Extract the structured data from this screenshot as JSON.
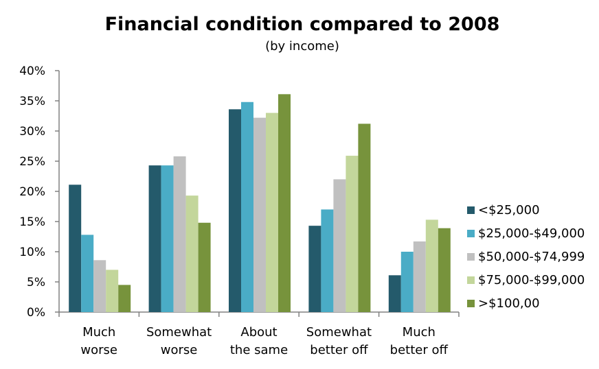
{
  "chart_data": {
    "type": "bar",
    "title": "Financial condition compared to 2008",
    "subtitle": "(by income)",
    "xlabel": "",
    "ylabel": "",
    "ylim": [
      0,
      0.4
    ],
    "ytick_values": [
      0,
      0.05,
      0.1,
      0.15,
      0.2,
      0.25,
      0.3,
      0.35,
      0.4
    ],
    "ytick_labels": [
      "0%",
      "5%",
      "10%",
      "15%",
      "20%",
      "25%",
      "30%",
      "35%",
      "40%"
    ],
    "categories": [
      [
        "Much",
        "worse"
      ],
      [
        "Somewhat",
        "worse"
      ],
      [
        "About",
        "the same"
      ],
      [
        "Somewhat",
        "better off"
      ],
      [
        "Much",
        "better off"
      ]
    ],
    "series": [
      {
        "name": "<$25,000",
        "color": "#245a6b",
        "values": [
          0.211,
          0.243,
          0.336,
          0.143,
          0.061
        ]
      },
      {
        "name": "$25,000-$49,000",
        "color": "#4aacc6",
        "values": [
          0.128,
          0.243,
          0.348,
          0.17,
          0.1
        ]
      },
      {
        "name": "$50,000-$74,999",
        "color": "#c0c0c0",
        "values": [
          0.086,
          0.258,
          0.322,
          0.22,
          0.117
        ]
      },
      {
        "name": "$75,000-$99,000",
        "color": "#c3d69b",
        "values": [
          0.07,
          0.193,
          0.33,
          0.259,
          0.153
        ]
      },
      {
        "name": ">$100,00",
        "color": "#77933c",
        "values": [
          0.045,
          0.148,
          0.361,
          0.312,
          0.139
        ]
      }
    ],
    "grid": false,
    "legend_position": "right"
  }
}
